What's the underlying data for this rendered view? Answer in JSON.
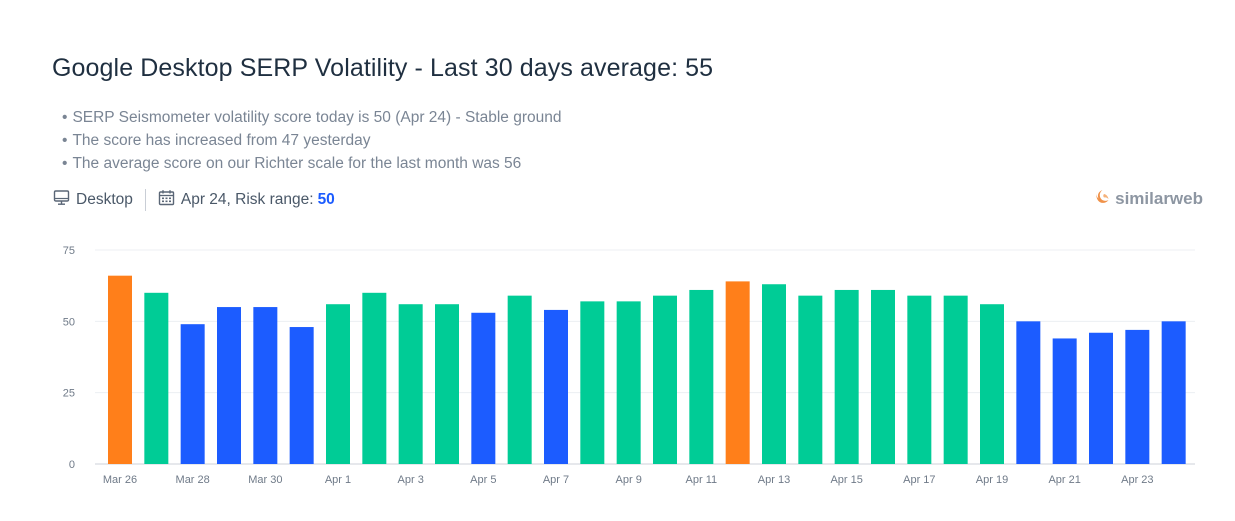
{
  "title": "Google Desktop SERP Volatility - Last 30 days average: 55",
  "bullets": [
    "SERP Seismometer volatility score today is 50 (Apr 24) - Stable ground",
    "The score has increased from 47 yesterday",
    "The average score on our Richter scale for the last month was 56"
  ],
  "meta": {
    "device_label": "Desktop",
    "date_label": "Apr 24, Risk range:",
    "risk_value": "50",
    "device_icon": "monitor-icon",
    "date_icon": "calendar-icon"
  },
  "brand": {
    "name": "similarweb",
    "icon": "similarweb-logo-icon"
  },
  "colors": {
    "orange": "#ff7f1a",
    "green": "#00cc96",
    "blue": "#1c5cff",
    "accent": "#1c5cff"
  },
  "chart_data": {
    "type": "bar",
    "categories": [
      "Mar 26",
      "Mar 27",
      "Mar 28",
      "Mar 29",
      "Mar 30",
      "Mar 31",
      "Apr 1",
      "Apr 2",
      "Apr 3",
      "Apr 4",
      "Apr 5",
      "Apr 6",
      "Apr 7",
      "Apr 8",
      "Apr 9",
      "Apr 10",
      "Apr 11",
      "Apr 12",
      "Apr 13",
      "Apr 14",
      "Apr 15",
      "Apr 16",
      "Apr 17",
      "Apr 18",
      "Apr 19",
      "Apr 20",
      "Apr 21",
      "Apr 22",
      "Apr 23",
      "Apr 24"
    ],
    "x_tick_labels": [
      "Mar 26",
      "Mar 28",
      "Mar 30",
      "Apr 1",
      "Apr 3",
      "Apr 5",
      "Apr 7",
      "Apr 9",
      "Apr 11",
      "Apr 13",
      "Apr 15",
      "Apr 17",
      "Apr 19",
      "Apr 21",
      "Apr 23"
    ],
    "values": [
      66,
      60,
      49,
      55,
      55,
      48,
      56,
      60,
      56,
      56,
      53,
      59,
      54,
      57,
      57,
      59,
      61,
      64,
      63,
      59,
      61,
      61,
      59,
      59,
      56,
      50,
      44,
      46,
      47,
      50
    ],
    "bar_colors": [
      "orange",
      "green",
      "blue",
      "blue",
      "blue",
      "blue",
      "green",
      "green",
      "green",
      "green",
      "blue",
      "green",
      "blue",
      "green",
      "green",
      "green",
      "green",
      "orange",
      "green",
      "green",
      "green",
      "green",
      "green",
      "green",
      "green",
      "blue",
      "blue",
      "blue",
      "blue",
      "blue"
    ],
    "yticks": [
      0,
      25,
      50,
      75
    ],
    "ylim": [
      0,
      75
    ],
    "grid": true,
    "legend": "none"
  }
}
